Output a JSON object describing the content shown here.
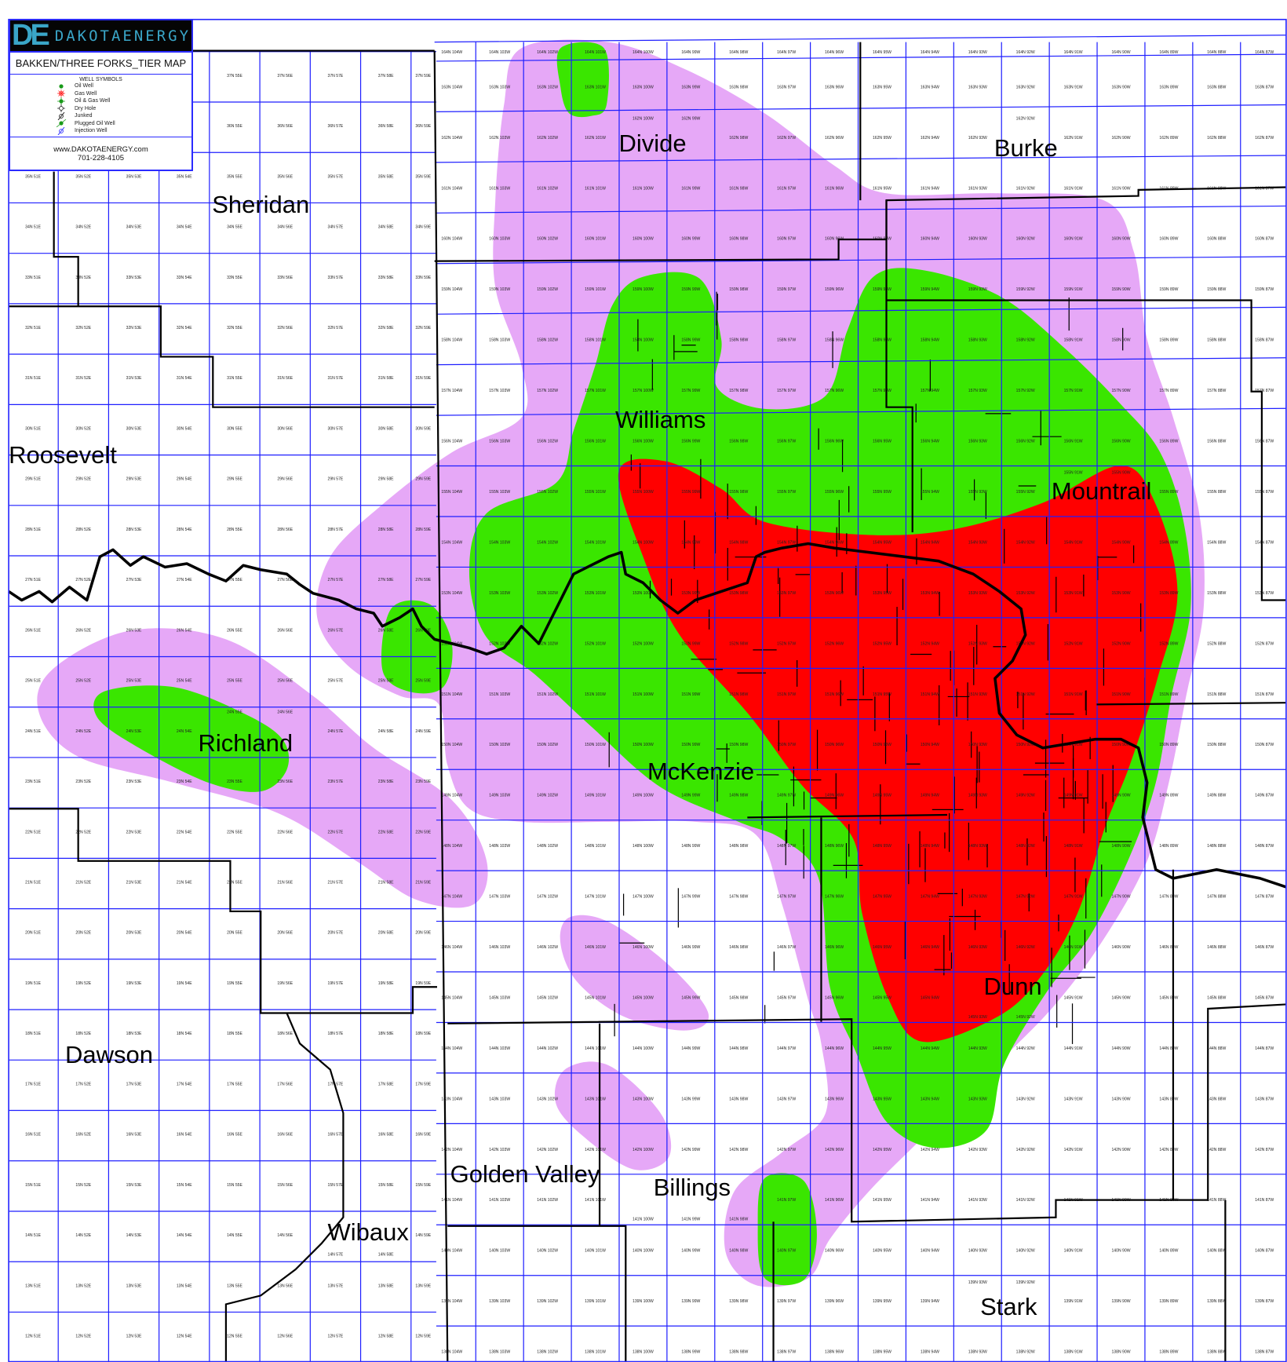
{
  "legend": {
    "logo_mark": "DE",
    "logo_text": "DAKOTAENERGY",
    "map_title": "BAKKEN/THREE FORKS_TIER MAP",
    "symbols_heading": "WELL SYMBOLS",
    "symbols": [
      {
        "label": "Oil Well",
        "icon": "oil-well-icon"
      },
      {
        "label": "Gas Well",
        "icon": "gas-well-icon"
      },
      {
        "label": "Oil & Gas Well",
        "icon": "oil-gas-well-icon"
      },
      {
        "label": "Dry Hole",
        "icon": "dry-hole-icon"
      },
      {
        "label": "Junked",
        "icon": "junked-icon"
      },
      {
        "label": "Plugged Oil Well",
        "icon": "plugged-oil-well-icon"
      },
      {
        "label": "Injection Well",
        "icon": "injection-well-icon"
      }
    ],
    "website": "www.DAKOTAENERGY.com",
    "phone": "701-228-4105"
  },
  "counties": [
    {
      "name": "Divide"
    },
    {
      "name": "Burke"
    },
    {
      "name": "Sheridan"
    },
    {
      "name": "Williams"
    },
    {
      "name": "Roosevelt"
    },
    {
      "name": "Mountrail"
    },
    {
      "name": "Richland"
    },
    {
      "name": "McKenzie"
    },
    {
      "name": "Dunn"
    },
    {
      "name": "Dawson"
    },
    {
      "name": "Golden Valley"
    },
    {
      "name": "Billings"
    },
    {
      "name": "Wibaux"
    },
    {
      "name": "Stark"
    }
  ],
  "townships": {
    "montana": {
      "rows": [
        "37N",
        "36N",
        "35N",
        "34N",
        "33N",
        "32N",
        "31N",
        "30N",
        "29N",
        "28N",
        "27N",
        "26N",
        "25N",
        "24N",
        "23N",
        "22N",
        "21N",
        "20N",
        "19N",
        "18N",
        "17N",
        "16N",
        "15N",
        "14N",
        "13N",
        "12N"
      ],
      "ranges": [
        "51E",
        "52E",
        "53E",
        "54E",
        "55E",
        "56E",
        "57E",
        "58E",
        "59E"
      ]
    },
    "north_dakota": {
      "rows": [
        "164N",
        "163N",
        "162N",
        "161N",
        "160N",
        "159N",
        "158N",
        "157N",
        "156N",
        "155N",
        "154N",
        "153N",
        "152N",
        "151N",
        "150N",
        "149N",
        "148N",
        "147N",
        "146N",
        "145N",
        "144N",
        "143N",
        "142N",
        "141N",
        "140N",
        "139N",
        "138N"
      ],
      "ranges": [
        "104W",
        "103W",
        "102W",
        "101W",
        "100W",
        "99W",
        "98W",
        "97W",
        "96W",
        "95W",
        "94W",
        "93W",
        "92W",
        "91W",
        "90W",
        "89W",
        "88W",
        "87W"
      ]
    }
  },
  "colors": {
    "tier_3": "#e6a8f7",
    "tier_2": "#3ae600",
    "tier_1": "#ff0000",
    "township_grid": "#1f1fff",
    "county_line": "#000000",
    "river": "#000000",
    "logo": "#3aa6c8"
  }
}
